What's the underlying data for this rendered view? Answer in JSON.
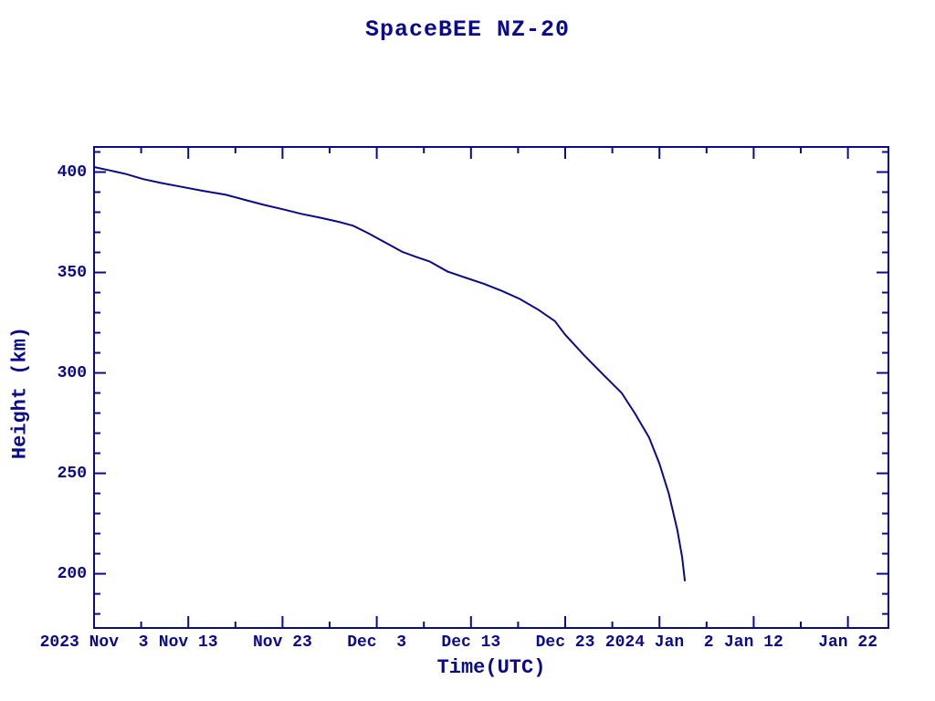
{
  "page": {
    "background": "#ffffff",
    "ink_color": "#0a0a8c"
  },
  "chart_data": {
    "type": "line",
    "title": "SpaceBEE NZ-20",
    "xlabel": "Time(UTC)",
    "ylabel": "Height (km)",
    "grid": false,
    "legend": "none",
    "x_axis": {
      "epoch": "2023 Nov 3",
      "unit": "days since 2023 Nov 3",
      "range_days": [
        0,
        84.3
      ],
      "major_ticks": [
        {
          "day": 0,
          "label": "2023 Nov  3"
        },
        {
          "day": 10,
          "label": "Nov 13"
        },
        {
          "day": 20,
          "label": "Nov 23"
        },
        {
          "day": 30,
          "label": "Dec  3"
        },
        {
          "day": 40,
          "label": "Dec 13"
        },
        {
          "day": 50,
          "label": "Dec 23"
        },
        {
          "day": 60,
          "label": "2024 Jan  2"
        },
        {
          "day": 70,
          "label": "Jan 12"
        },
        {
          "day": 80,
          "label": "Jan 22"
        }
      ],
      "minor_tick_days": [
        5,
        15,
        25,
        35,
        45,
        55,
        65,
        75
      ]
    },
    "y_axis": {
      "range": [
        173,
        412.5
      ],
      "major_ticks": [
        {
          "value": 400,
          "label": "400"
        },
        {
          "value": 350,
          "label": "350"
        },
        {
          "value": 300,
          "label": "300"
        },
        {
          "value": 250,
          "label": "250"
        },
        {
          "value": 200,
          "label": "200"
        }
      ],
      "minor_tick_step": 10
    },
    "series": [
      {
        "name": "orbital-height",
        "color": "#0a0a8c",
        "points": [
          [
            0,
            402.5
          ],
          [
            1.5,
            401.0
          ],
          [
            3.4,
            399.0
          ],
          [
            5.2,
            396.5
          ],
          [
            7.2,
            394.5
          ],
          [
            9.1,
            392.8
          ],
          [
            11.5,
            390.7
          ],
          [
            14,
            388.7
          ],
          [
            16.2,
            385.9
          ],
          [
            18.1,
            383.6
          ],
          [
            20,
            381.5
          ],
          [
            22,
            379.2
          ],
          [
            24,
            377.3
          ],
          [
            26,
            375.2
          ],
          [
            27.5,
            373.3
          ],
          [
            29,
            369.8
          ],
          [
            30.8,
            365.2
          ],
          [
            32.7,
            360.3
          ],
          [
            34.2,
            357.7
          ],
          [
            35.6,
            355.5
          ],
          [
            37.5,
            350.5
          ],
          [
            39.5,
            347.3
          ],
          [
            41.4,
            344.3
          ],
          [
            43.3,
            340.8
          ],
          [
            45.2,
            336.8
          ],
          [
            47.2,
            331.3
          ],
          [
            48.9,
            325.8
          ],
          [
            50,
            319.0
          ],
          [
            52,
            308.8
          ],
          [
            54,
            299.3
          ],
          [
            56,
            290.0
          ],
          [
            57.4,
            279.8
          ],
          [
            58.9,
            267.8
          ],
          [
            60,
            254.8
          ],
          [
            61,
            239.8
          ],
          [
            61.9,
            221.8
          ],
          [
            62.4,
            208.5
          ],
          [
            62.7,
            196.3
          ]
        ]
      }
    ]
  }
}
